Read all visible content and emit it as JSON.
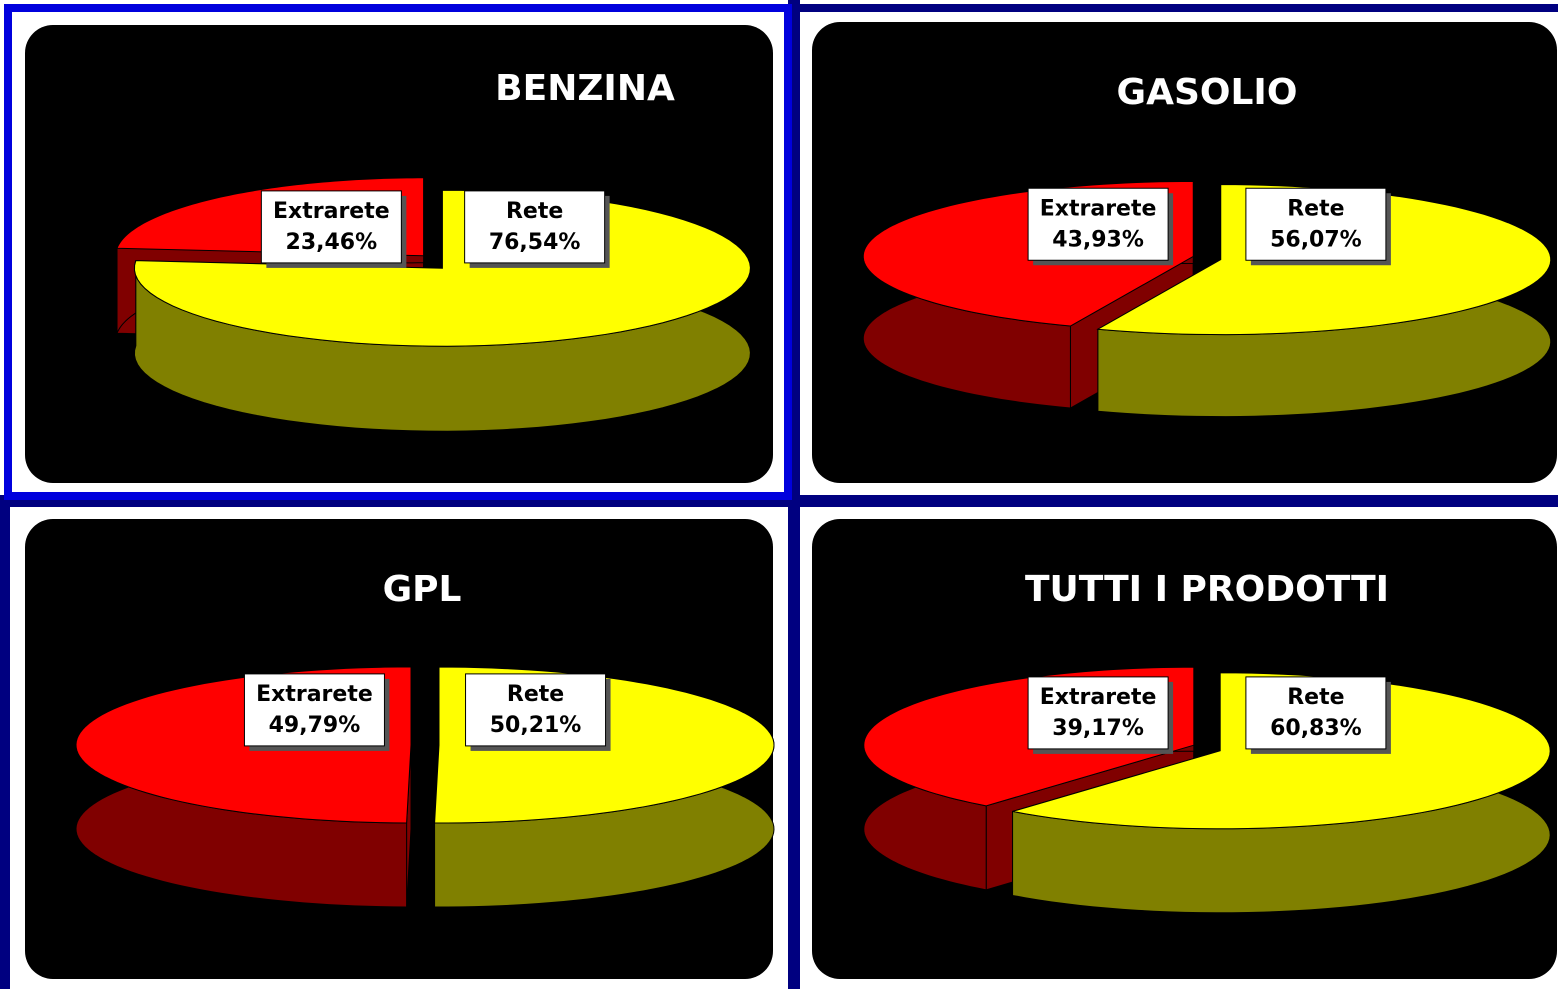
{
  "chart_data": [
    {
      "type": "pie",
      "title": "BENZINA",
      "categories": [
        "Extrarete",
        "Rete"
      ],
      "values": [
        23.46,
        76.54
      ],
      "value_labels": [
        "23,46%",
        "76,54%"
      ],
      "colors": [
        "#ff0000",
        "#ffff00"
      ]
    },
    {
      "type": "pie",
      "title": "GASOLIO",
      "categories": [
        "Extrarete",
        "Rete"
      ],
      "values": [
        43.93,
        56.07
      ],
      "value_labels": [
        "43,93%",
        "56,07%"
      ],
      "colors": [
        "#ff0000",
        "#ffff00"
      ]
    },
    {
      "type": "pie",
      "title": "GPL",
      "categories": [
        "Extrarete",
        "Rete"
      ],
      "values": [
        49.79,
        50.21
      ],
      "value_labels": [
        "49,79%",
        "50,21%"
      ],
      "colors": [
        "#ff0000",
        "#ffff00"
      ]
    },
    {
      "type": "pie",
      "title": "TUTTI I PRODOTTI",
      "categories": [
        "Extrarete",
        "Rete"
      ],
      "values": [
        39.17,
        60.83
      ],
      "value_labels": [
        "39,17%",
        "60,83%"
      ],
      "colors": [
        "#ff0000",
        "#ffff00"
      ]
    }
  ]
}
